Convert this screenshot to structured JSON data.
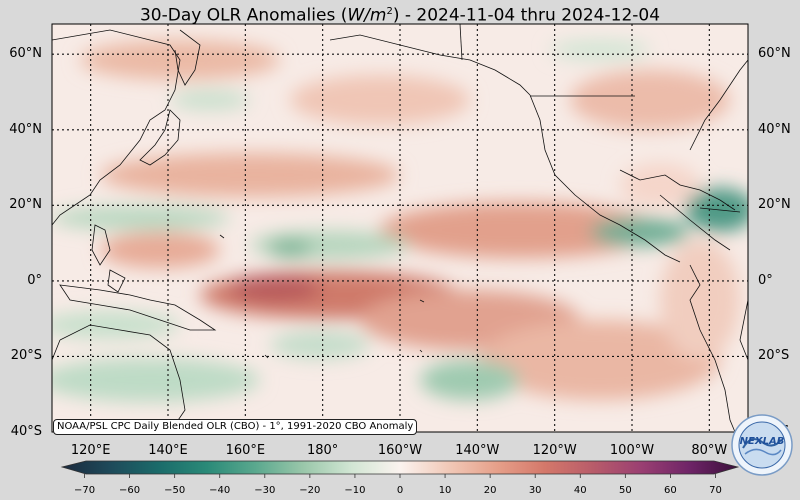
{
  "title": {
    "prefix": "30-Day OLR Anomalies (",
    "unit_base": "W/m",
    "unit_exp": "2",
    "suffix": ") - 2024-11-04 thru 2024-12-04"
  },
  "map": {
    "lat_labels": [
      "60°N",
      "40°N",
      "20°N",
      "0°",
      "20°S",
      "40°S"
    ],
    "lat_values": [
      60,
      40,
      20,
      0,
      -20,
      -40
    ],
    "lon_labels": [
      "120°E",
      "140°E",
      "160°E",
      "180°",
      "160°W",
      "140°W",
      "120°W",
      "100°W",
      "80°W"
    ],
    "lon_values": [
      120,
      140,
      160,
      180,
      200,
      220,
      240,
      260,
      280
    ],
    "lat_range": [
      -40,
      68
    ],
    "lon_range": [
      110,
      290
    ],
    "grid": true
  },
  "source_note": "NOAA/PSL CPC Daily Blended OLR (CBO) - 1°, 1991-2020 CBO Anomaly",
  "colorbar": {
    "ticks": [
      "−70",
      "−60",
      "−50",
      "−40",
      "−30",
      "−20",
      "−10",
      "0",
      "10",
      "20",
      "30",
      "40",
      "50",
      "60",
      "70"
    ],
    "range": [
      -75,
      75
    ],
    "colors": [
      "#1b2a3e",
      "#1e4a5a",
      "#1b6b6a",
      "#2a8a78",
      "#5aa88e",
      "#9ac7aa",
      "#d2e6d4",
      "#fbf3ef",
      "#f1c9b8",
      "#e6a08a",
      "#d4786a",
      "#b85c6a",
      "#9a3f72",
      "#6e2467",
      "#3a0f3a"
    ]
  },
  "logo": {
    "text": "NEXLAB"
  }
}
